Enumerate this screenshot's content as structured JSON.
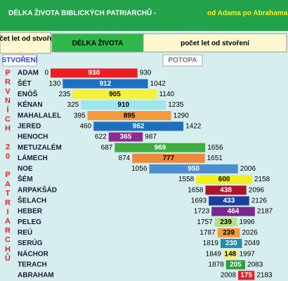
{
  "chart_data": {
    "type": "range-bar",
    "title": "DÉLKA ŽIVOTA BIBLICKÝCH PATRIARCHŮ -",
    "subtitle": "od Adama po Abrahama",
    "header_left": "počet let od stvoření",
    "header_middle": "DÉLKA ŽIVOTA",
    "header_right": "počet let od stvoření",
    "start_marker": "STVOŘENÍ",
    "flood_marker": "POTOPA",
    "side_label": "PRVNÍCH 20 PATRIARCHŮ",
    "categories": [
      "ADAM",
      "ŠÉT",
      "ENÓŠ",
      "KÉNAN",
      "MAHALALEL",
      "JERED",
      "HENOCH",
      "METUZALÉM",
      "LÁMECH",
      "NOE",
      "ŠÉM",
      "ARPAKŠÁD",
      "ŠELACH",
      "HEBER",
      "PELEG",
      "REÚ",
      "SERÚG",
      "NÁCHOR",
      "TERACH",
      "ABRAHAM"
    ],
    "starts": [
      0,
      130,
      235,
      325,
      395,
      460,
      622,
      687,
      874,
      1056,
      1558,
      1658,
      1693,
      1723,
      1757,
      1787,
      1819,
      1849,
      1878,
      2008
    ],
    "values": [
      930,
      912,
      905,
      910,
      895,
      962,
      365,
      969,
      777,
      950,
      600,
      438,
      433,
      464,
      239,
      239,
      230,
      148,
      205,
      175
    ],
    "ends": [
      930,
      1042,
      1140,
      1235,
      1290,
      1422,
      987,
      1656,
      1651,
      2006,
      2158,
      2096,
      2126,
      2187,
      1996,
      2026,
      2049,
      1997,
      2083,
      2183
    ],
    "colors": [
      "#ee1c24",
      "#1f6fc0",
      "#f7f03c",
      "#9ee6ee",
      "#f39a3c",
      "#1f6fc0",
      "#8e2a94",
      "#3fae3f",
      "#ee8a3a",
      "#4a90d0",
      "#f5ee1a",
      "#b0132a",
      "#1c3f9c",
      "#7a2a8e",
      "#b5e08a",
      "#f39a3c",
      "#1f8fae",
      "#f8ee80",
      "#2e9e3e",
      "#e41e26"
    ],
    "xlim": [
      0,
      2200
    ]
  }
}
